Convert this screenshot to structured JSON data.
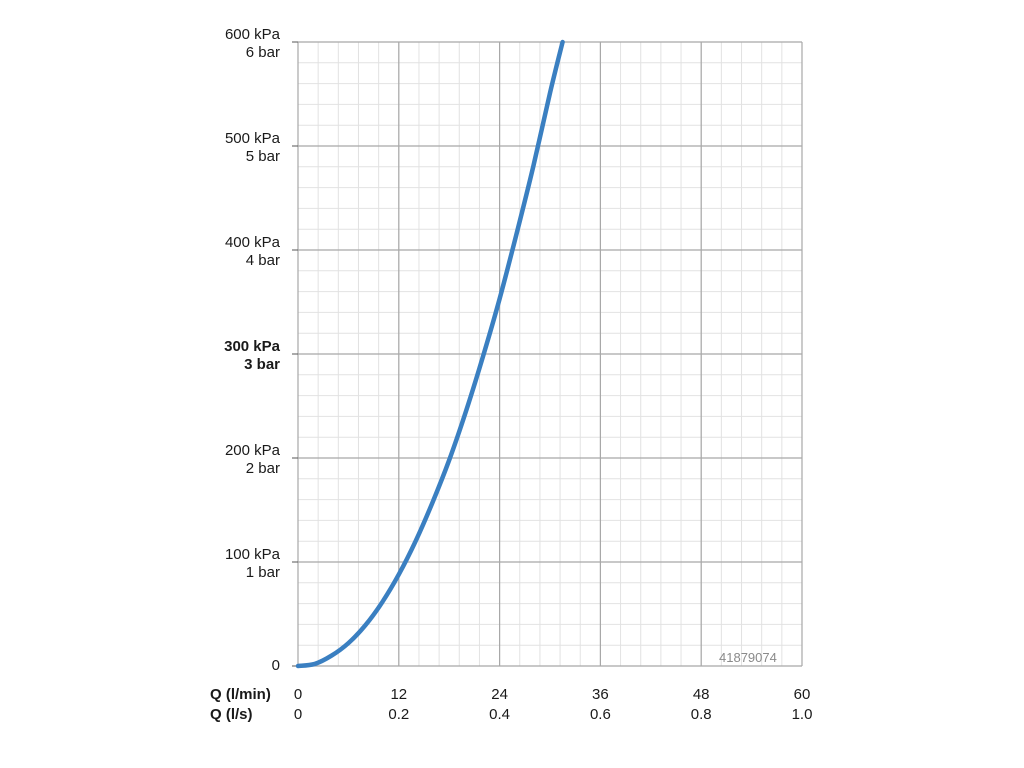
{
  "chart_data": {
    "type": "line",
    "title": "",
    "y_ticks": [
      {
        "value": 600,
        "kpa": "600 kPa",
        "bar": "6 bar",
        "bold": false
      },
      {
        "value": 500,
        "kpa": "500 kPa",
        "bar": "5 bar",
        "bold": false
      },
      {
        "value": 400,
        "kpa": "400 kPa",
        "bar": "4 bar",
        "bold": false
      },
      {
        "value": 300,
        "kpa": "300 kPa",
        "bar": "3 bar",
        "bold": true
      },
      {
        "value": 200,
        "kpa": "200 kPa",
        "bar": "2 bar",
        "bold": false
      },
      {
        "value": 100,
        "kpa": "100 kPa",
        "bar": "1 bar",
        "bold": false
      },
      {
        "value": 0,
        "kpa": "0",
        "bar": "",
        "bold": false
      }
    ],
    "x_axis_primary": {
      "label": "Q (l/min)",
      "ticks": [
        "0",
        "12",
        "24",
        "36",
        "48",
        "60"
      ]
    },
    "x_axis_secondary": {
      "label": "Q (l/s)",
      "ticks": [
        "0",
        "0.2",
        "0.4",
        "0.6",
        "0.8",
        "1.0"
      ]
    },
    "xlim": [
      0,
      60
    ],
    "ylim": [
      0,
      600
    ],
    "grid": true,
    "series": [
      {
        "color": "#3a7fc1",
        "x": [
          0,
          2,
          4,
          6,
          8,
          10,
          12,
          14,
          16,
          18,
          20,
          22,
          24,
          26,
          28,
          30,
          31.5
        ],
        "y": [
          0,
          2,
          10,
          22,
          39,
          61,
          88,
          120,
          157,
          198,
          245,
          297,
          353,
          415,
          480,
          551,
          600
        ]
      }
    ],
    "annotation": "41879074"
  }
}
